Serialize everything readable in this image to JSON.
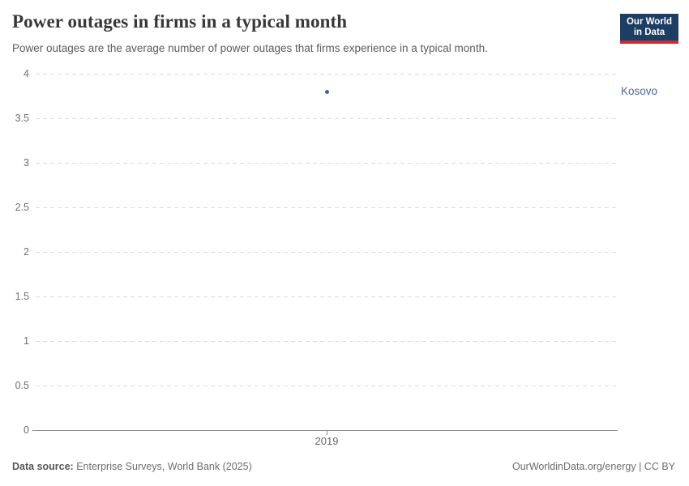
{
  "header": {
    "title": "Power outages in firms in a typical month",
    "subtitle": "Power outages are the average number of power outages that firms experience in a typical month.",
    "logo": {
      "line1": "Our World",
      "line2": "in Data",
      "bg_color": "#1d3d63",
      "bar_color": "#d62832"
    }
  },
  "footer": {
    "source_label": "Data source:",
    "source_text": " Enterprise Surveys, World Bank (2025)",
    "link_text": "OurWorldinData.org/energy | CC BY"
  },
  "chart_data": {
    "type": "scatter",
    "title": "Power outages in firms in a typical month",
    "xlabel": "",
    "ylabel": "",
    "ylim": [
      0,
      4
    ],
    "y_ticks": [
      0,
      0.5,
      1,
      1.5,
      2,
      2.5,
      3,
      3.5,
      4
    ],
    "x_ticks": [
      "2019"
    ],
    "grid": "horizontal-dashed",
    "legend_position": "right-of-point",
    "series": [
      {
        "name": "Kosovo",
        "color": "#4c6a9c",
        "point_color": "#44639e",
        "x": [
          2019
        ],
        "values": [
          3.8
        ]
      }
    ],
    "axis_color": "#8f8f8f",
    "grid_color": "#dcdcdc",
    "tick_label_color": "#6e6e6e"
  }
}
